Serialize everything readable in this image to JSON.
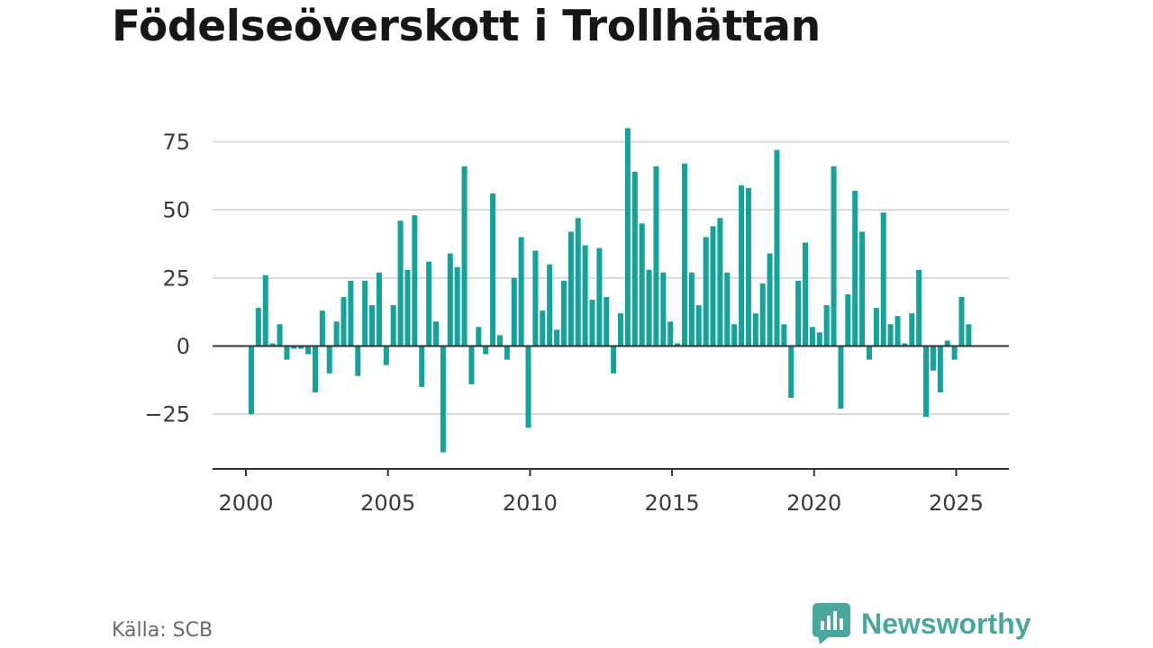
{
  "title": "Födelseöverskott i Trollhättan",
  "source": "Källa: SCB",
  "brand": {
    "name": "Newsworthy",
    "icon": "bar-chart-speech-bubble-icon",
    "color": "#4aa79d"
  },
  "chart_data": {
    "type": "bar",
    "title": "Födelseöverskott i Trollhättan",
    "xlabel": "",
    "ylabel": "",
    "frequency": "quarterly",
    "x_start": 2000,
    "x_ticks": [
      "2000",
      "2005",
      "2010",
      "2015",
      "2020",
      "2025"
    ],
    "y_ticks": [
      "−25",
      "0",
      "25",
      "50",
      "75"
    ],
    "y_tick_values": [
      -25,
      0,
      25,
      50,
      75
    ],
    "xlim": [
      1998.8,
      2026.8
    ],
    "ylim": [
      -45,
      85
    ],
    "grid": true,
    "bar_color": "#14a39a",
    "values": [
      -25,
      14,
      26,
      1,
      8,
      -5,
      -1,
      -1,
      -3,
      -17,
      13,
      -10,
      9,
      18,
      24,
      -11,
      24,
      15,
      27,
      -7,
      15,
      46,
      28,
      48,
      -15,
      31,
      9,
      -39,
      34,
      29,
      66,
      -14,
      7,
      -3,
      56,
      4,
      -5,
      25,
      40,
      -30,
      35,
      13,
      30,
      6,
      24,
      42,
      47,
      37,
      17,
      36,
      18,
      -10,
      12,
      80,
      64,
      45,
      28,
      66,
      27,
      9,
      1,
      67,
      27,
      15,
      40,
      44,
      47,
      27,
      8,
      59,
      58,
      12,
      23,
      34,
      72,
      8,
      -19,
      24,
      38,
      7,
      5,
      15,
      66,
      -23,
      19,
      57,
      42,
      -5,
      14,
      49,
      8,
      11,
      1,
      12,
      28,
      -26,
      -9,
      -17,
      2,
      -5,
      18,
      8
    ]
  }
}
